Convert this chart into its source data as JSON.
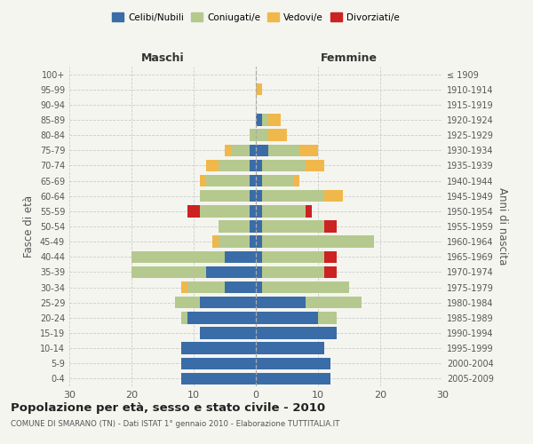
{
  "age_groups": [
    "0-4",
    "5-9",
    "10-14",
    "15-19",
    "20-24",
    "25-29",
    "30-34",
    "35-39",
    "40-44",
    "45-49",
    "50-54",
    "55-59",
    "60-64",
    "65-69",
    "70-74",
    "75-79",
    "80-84",
    "85-89",
    "90-94",
    "95-99",
    "100+"
  ],
  "birth_years": [
    "2005-2009",
    "2000-2004",
    "1995-1999",
    "1990-1994",
    "1985-1989",
    "1980-1984",
    "1975-1979",
    "1970-1974",
    "1965-1969",
    "1960-1964",
    "1955-1959",
    "1950-1954",
    "1945-1949",
    "1940-1944",
    "1935-1939",
    "1930-1934",
    "1925-1929",
    "1920-1924",
    "1915-1919",
    "1910-1914",
    "≤ 1909"
  ],
  "males": {
    "celibi": [
      12,
      12,
      12,
      9,
      11,
      9,
      5,
      8,
      5,
      1,
      1,
      1,
      1,
      1,
      1,
      1,
      0,
      0,
      0,
      0,
      0
    ],
    "coniugati": [
      0,
      0,
      0,
      0,
      1,
      4,
      6,
      12,
      15,
      5,
      5,
      8,
      8,
      7,
      5,
      3,
      1,
      0,
      0,
      0,
      0
    ],
    "vedovi": [
      0,
      0,
      0,
      0,
      0,
      0,
      1,
      0,
      0,
      1,
      0,
      0,
      0,
      1,
      2,
      1,
      0,
      0,
      0,
      0,
      0
    ],
    "divorziati": [
      0,
      0,
      0,
      0,
      0,
      0,
      0,
      0,
      0,
      0,
      0,
      2,
      0,
      0,
      0,
      0,
      0,
      0,
      0,
      0,
      0
    ]
  },
  "females": {
    "nubili": [
      12,
      12,
      11,
      13,
      10,
      8,
      1,
      1,
      1,
      1,
      1,
      1,
      1,
      1,
      1,
      2,
      0,
      1,
      0,
      0,
      0
    ],
    "coniugate": [
      0,
      0,
      0,
      0,
      3,
      9,
      14,
      10,
      10,
      18,
      10,
      7,
      10,
      5,
      7,
      5,
      2,
      1,
      0,
      0,
      0
    ],
    "vedove": [
      0,
      0,
      0,
      0,
      0,
      0,
      0,
      0,
      0,
      0,
      0,
      0,
      3,
      1,
      3,
      3,
      3,
      2,
      0,
      1,
      0
    ],
    "divorziate": [
      0,
      0,
      0,
      0,
      0,
      0,
      0,
      2,
      2,
      0,
      2,
      1,
      0,
      0,
      0,
      0,
      0,
      0,
      0,
      0,
      0
    ]
  },
  "colors": {
    "celibi": "#3a6ca8",
    "coniugati": "#b5c98e",
    "vedovi": "#f0b84a",
    "divorziati": "#cc2222"
  },
  "xlim": 30,
  "title": "Popolazione per età, sesso e stato civile - 2010",
  "subtitle": "COMUNE DI SMARANO (TN) - Dati ISTAT 1° gennaio 2010 - Elaborazione TUTTITALIA.IT",
  "xlabel_left": "Maschi",
  "xlabel_right": "Femmine",
  "ylabel_left": "Fasce di età",
  "ylabel_right": "Anni di nascita",
  "bg_color": "#f5f5f0",
  "grid_color": "#cccccc"
}
